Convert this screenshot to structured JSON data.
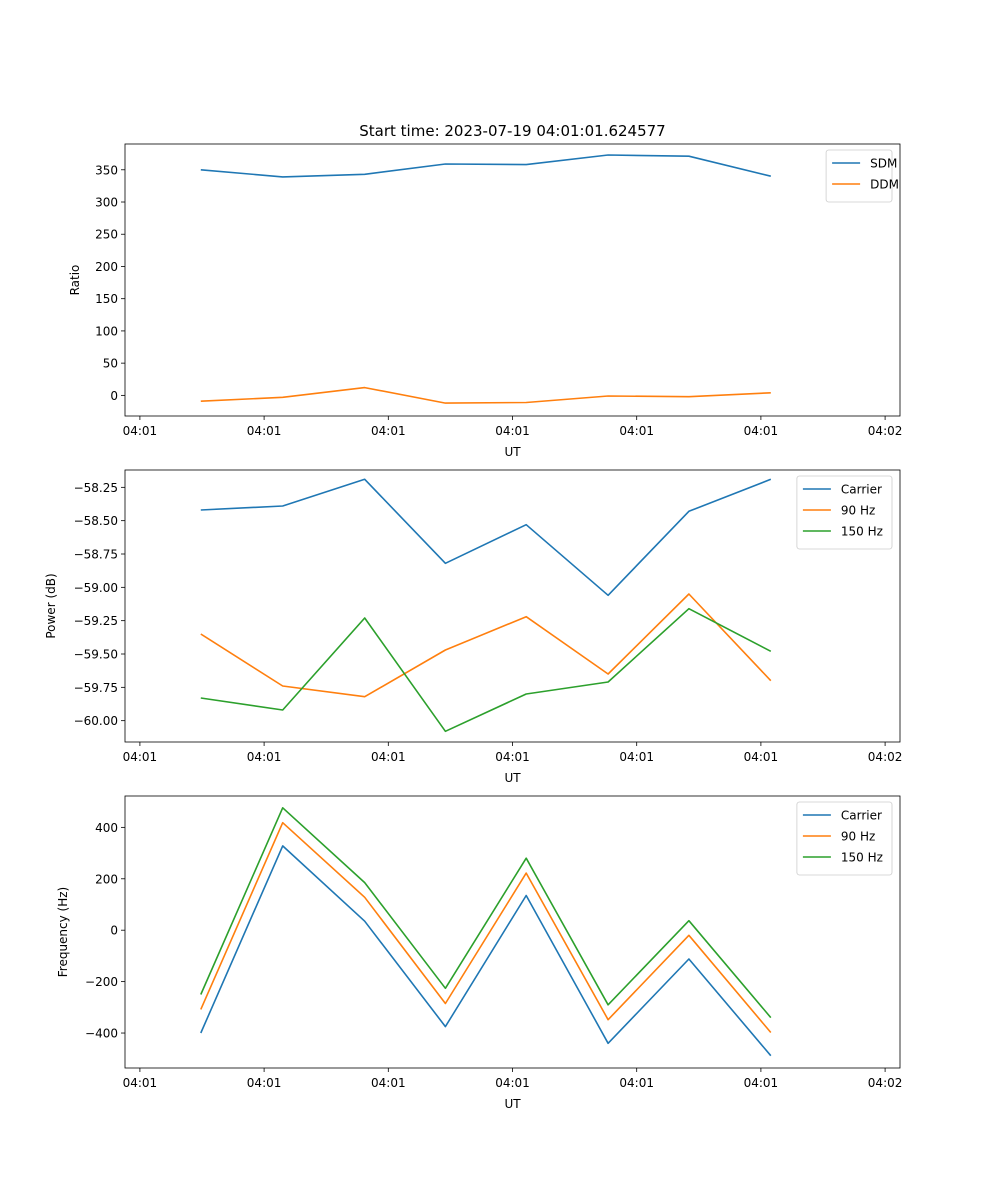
{
  "figure_title": "Start time: 2023-07-19 04:01:01.624577",
  "chart_data": [
    {
      "type": "line",
      "title": "Start time: 2023-07-19 04:01:01.624577",
      "xlabel": "UT",
      "ylabel": "Ratio",
      "x_ticks": [
        "04:01",
        "04:01",
        "04:01",
        "04:01",
        "04:01",
        "04:01",
        "04:02"
      ],
      "x_tick_values": [
        0,
        1,
        2,
        3,
        4,
        5,
        6
      ],
      "x": [
        0.49,
        1.15,
        1.81,
        2.46,
        3.11,
        3.77,
        4.42,
        5.08
      ],
      "xlim": [
        -0.12,
        6.12
      ],
      "ylim": [
        -32,
        390
      ],
      "y_ticks": [
        0,
        50,
        100,
        150,
        200,
        250,
        300,
        350
      ],
      "legend": "top-right",
      "series": [
        {
          "name": "SDM",
          "color": "#1f77b4",
          "values": [
            350,
            339,
            343,
            359,
            358,
            373,
            371,
            340
          ]
        },
        {
          "name": "DDM",
          "color": "#ff7f0e",
          "values": [
            -9,
            -3,
            12,
            -12,
            -11,
            -1,
            -2,
            4
          ]
        }
      ]
    },
    {
      "type": "line",
      "title": "",
      "xlabel": "UT",
      "ylabel": "Power (dB)",
      "x_ticks": [
        "04:01",
        "04:01",
        "04:01",
        "04:01",
        "04:01",
        "04:01",
        "04:02"
      ],
      "x_tick_values": [
        0,
        1,
        2,
        3,
        4,
        5,
        6
      ],
      "x": [
        0.49,
        1.15,
        1.81,
        2.46,
        3.11,
        3.77,
        4.42,
        5.08
      ],
      "xlim": [
        -0.12,
        6.12
      ],
      "ylim": [
        -60.16,
        -58.12
      ],
      "y_ticks": [
        -60.0,
        -59.75,
        -59.5,
        -59.25,
        -59.0,
        -58.75,
        -58.5,
        -58.25
      ],
      "y_tick_labels": [
        "−60.00",
        "−59.75",
        "−59.50",
        "−59.25",
        "−59.00",
        "−58.75",
        "−58.50",
        "−58.25"
      ],
      "legend": "top-right",
      "series": [
        {
          "name": "Carrier",
          "color": "#1f77b4",
          "values": [
            -58.42,
            -58.39,
            -58.19,
            -58.82,
            -58.53,
            -59.06,
            -58.43,
            -58.19
          ]
        },
        {
          "name": "90 Hz",
          "color": "#ff7f0e",
          "values": [
            -59.35,
            -59.74,
            -59.82,
            -59.47,
            -59.22,
            -59.65,
            -59.05,
            -59.7
          ]
        },
        {
          "name": "150 Hz",
          "color": "#2ca02c",
          "values": [
            -59.83,
            -59.92,
            -59.23,
            -60.08,
            -59.8,
            -59.71,
            -59.16,
            -59.48
          ]
        }
      ]
    },
    {
      "type": "line",
      "title": "",
      "xlabel": "UT",
      "ylabel": "Frequency (Hz)",
      "x_ticks": [
        "04:01",
        "04:01",
        "04:01",
        "04:01",
        "04:01",
        "04:01",
        "04:02"
      ],
      "x_tick_values": [
        0,
        1,
        2,
        3,
        4,
        5,
        6
      ],
      "x": [
        0.49,
        1.15,
        1.81,
        2.46,
        3.11,
        3.77,
        4.42,
        5.08
      ],
      "xlim": [
        -0.12,
        6.12
      ],
      "ylim": [
        -536,
        522
      ],
      "y_ticks": [
        -400,
        -200,
        0,
        200,
        400
      ],
      "y_tick_labels": [
        "−400",
        "−200",
        "0",
        "200",
        "400"
      ],
      "legend": "top-right",
      "series": [
        {
          "name": "Carrier",
          "color": "#1f77b4",
          "values": [
            -400,
            328,
            35,
            -375,
            135,
            -440,
            -112,
            -488
          ]
        },
        {
          "name": "90 Hz",
          "color": "#ff7f0e",
          "values": [
            -308,
            418,
            128,
            -285,
            222,
            -348,
            -20,
            -398
          ]
        },
        {
          "name": "150 Hz",
          "color": "#2ca02c",
          "values": [
            -250,
            476,
            185,
            -226,
            280,
            -290,
            37,
            -340
          ]
        }
      ]
    }
  ]
}
